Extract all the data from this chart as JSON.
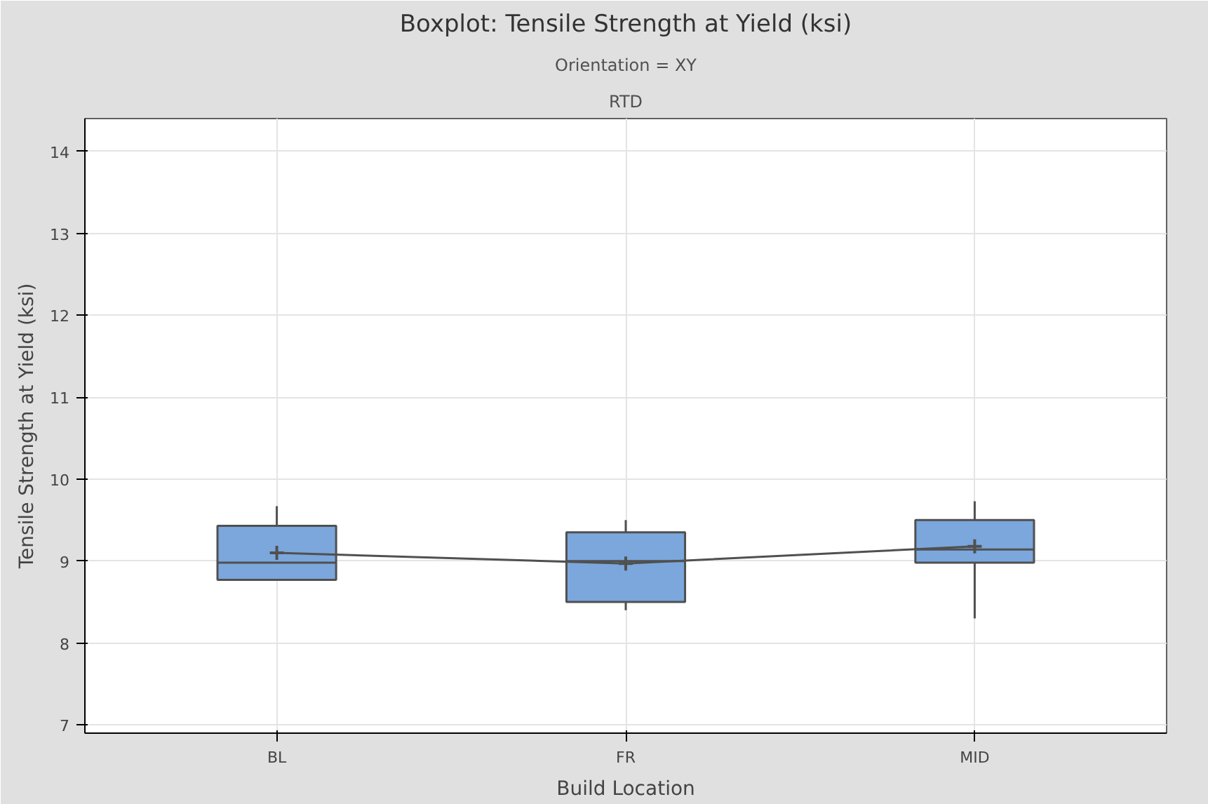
{
  "chart_data": {
    "type": "box",
    "title": "Boxplot: Tensile Strength at Yield (ksi)",
    "subtitle": "Orientation = XY",
    "annotations": [
      "RTD"
    ],
    "xlabel": "Build Location",
    "ylabel": "Tensile Strength at Yield (ksi)",
    "categories": [
      "BL",
      "FR",
      "MID"
    ],
    "boxes": [
      {
        "low": 8.77,
        "q1": 8.77,
        "median": 8.98,
        "q3": 9.43,
        "high": 9.67,
        "mean": 9.1
      },
      {
        "low": 8.4,
        "q1": 8.5,
        "median": 9.0,
        "q3": 9.35,
        "high": 9.5,
        "mean": 8.97
      },
      {
        "low": 8.3,
        "q1": 8.98,
        "median": 9.14,
        "q3": 9.5,
        "high": 9.73,
        "mean": 9.18
      }
    ],
    "series": [
      {
        "type": "line",
        "color": "#505050",
        "values": [
          9.1,
          8.97,
          9.18
        ]
      }
    ],
    "color": "#7ba7dc",
    "ylim": [
      6.9,
      14.4
    ],
    "yticks": [
      7,
      8,
      9,
      10,
      11,
      12,
      13,
      14
    ],
    "grid": true
  }
}
